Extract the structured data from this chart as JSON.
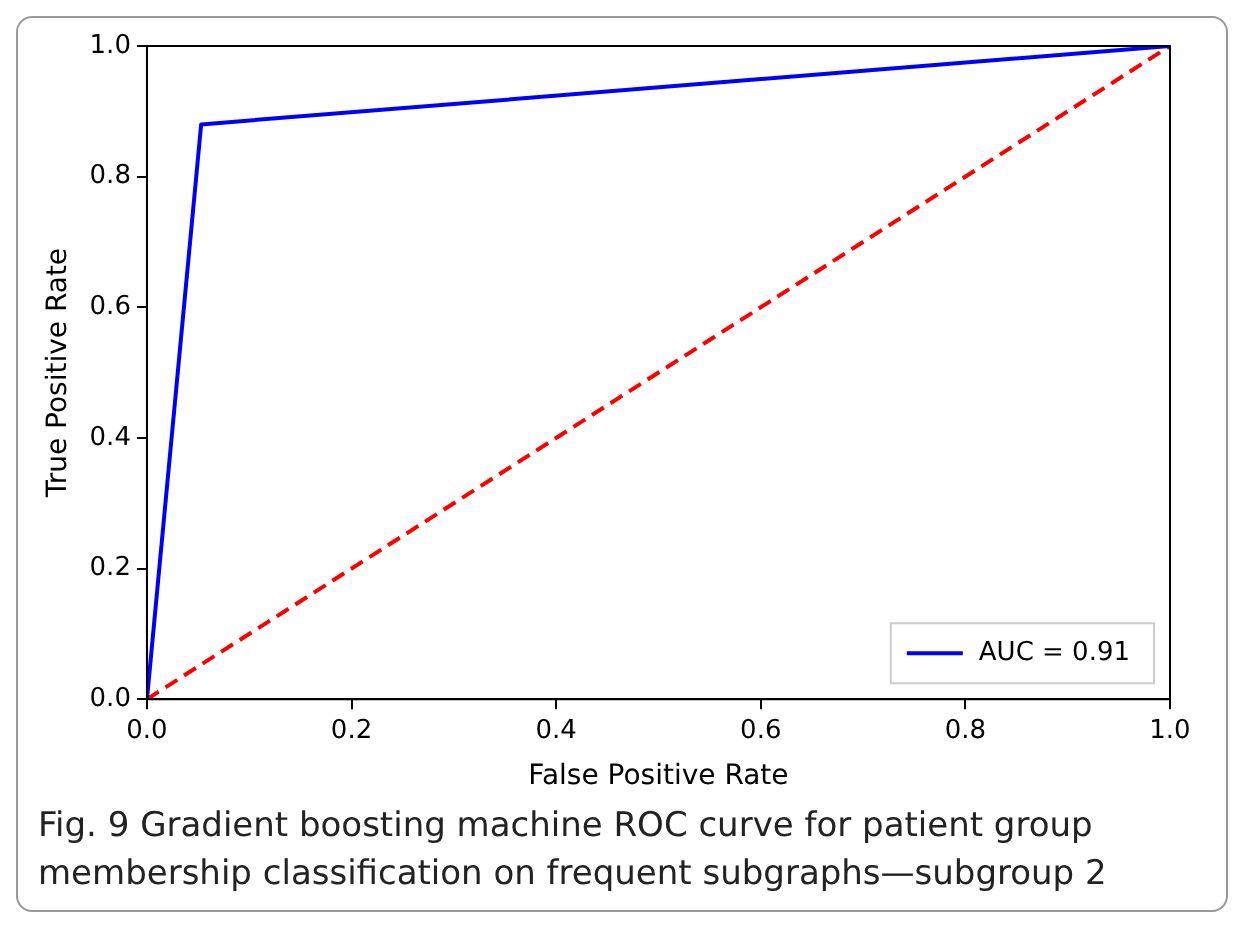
{
  "chart_data": {
    "type": "line",
    "xlabel": "False Positive Rate",
    "ylabel": "True Positive Rate",
    "xlim": [
      0,
      1
    ],
    "ylim": [
      0,
      1
    ],
    "xticks": [
      {
        "value": 0,
        "label": "0.0"
      },
      0.2,
      0.4,
      0.6,
      0.8,
      {
        "value": 1,
        "label": "1.0"
      }
    ],
    "yticks": [
      {
        "value": 0,
        "label": "0.0"
      },
      0.2,
      0.4,
      0.6,
      0.8,
      {
        "value": 1,
        "label": "1.0"
      }
    ],
    "series": [
      {
        "name": "AUC = 0.91",
        "color": "#0000ff",
        "x": [
          0,
          0.053,
          1
        ],
        "values": [
          0,
          0.88,
          1
        ],
        "line_style": "solid"
      },
      {
        "color": "#ff0000",
        "x": [
          0,
          1
        ],
        "values": [
          0,
          1
        ],
        "line_style": "dashed"
      }
    ],
    "grid": false,
    "legend": "bottom right",
    "marker": "none",
    "annotations": [
      "Fig. 9  Gradient boosting machine ROC curve for patient group membership classification on frequent subgraphs—subgroup 2"
    ]
  }
}
